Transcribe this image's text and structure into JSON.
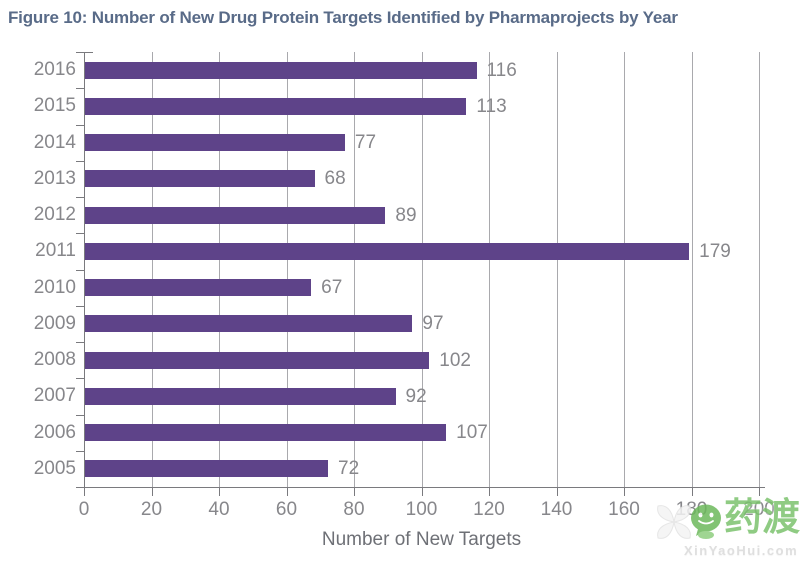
{
  "figure": {
    "title": "Figure 10: Number of New Drug Protein Targets Identified by Pharmaprojects by Year"
  },
  "chart_data": {
    "type": "bar",
    "orientation": "horizontal",
    "categories": [
      "2016",
      "2015",
      "2014",
      "2013",
      "2012",
      "2011",
      "2010",
      "2009",
      "2008",
      "2007",
      "2006",
      "2005"
    ],
    "values": [
      116,
      113,
      77,
      68,
      89,
      179,
      67,
      97,
      102,
      92,
      107,
      72
    ],
    "value_labels_shown": true,
    "xlabel": "Number of New Targets",
    "xticks": [
      0,
      20,
      40,
      60,
      80,
      100,
      120,
      140,
      160,
      180,
      200
    ],
    "xlim": [
      0,
      200
    ],
    "grid": true,
    "legend": "none",
    "bar_color": "#5e4389",
    "label_color": "#87878b",
    "title_color": "#596b88",
    "gridline_color": "#a9a9ad",
    "axis_color": "#7a7a7e"
  },
  "watermark": {
    "logo_text": "药渡",
    "url_text": "XinYaoHui.com",
    "logo_green": "#6db95c"
  }
}
